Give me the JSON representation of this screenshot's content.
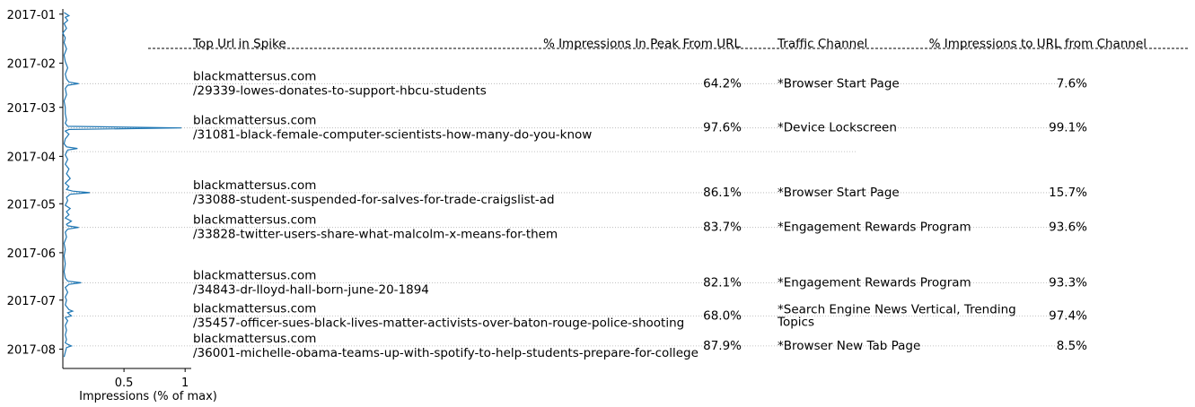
{
  "chart_data": {
    "type": "line",
    "orientation": "vertical-time",
    "xlabel": "Impressions (% of max)",
    "x_ticks": [
      {
        "value": 0.5,
        "label": "0.5"
      },
      {
        "value": 1,
        "label": "1"
      }
    ],
    "xlim": [
      0,
      1.05
    ],
    "y_ticks": [
      "2017-01",
      "2017-02",
      "2017-03",
      "2017-04",
      "2017-05",
      "2017-06",
      "2017-07",
      "2017-08"
    ],
    "ylim": [
      "2016-12-31",
      "2017-08-07"
    ],
    "line_color": "#1f77b4",
    "series": [
      {
        "points": [
          [
            "2016-12-31",
            0.01
          ],
          [
            "2017-01-01",
            0.03
          ],
          [
            "2017-01-02",
            0.05
          ],
          [
            "2017-01-03",
            0.02
          ],
          [
            "2017-01-05",
            0.04
          ],
          [
            "2017-01-07",
            0.01
          ],
          [
            "2017-01-10",
            0.03
          ],
          [
            "2017-01-13",
            0.0
          ],
          [
            "2017-01-16",
            0.02
          ],
          [
            "2017-01-19",
            0.01
          ],
          [
            "2017-01-23",
            0.03
          ],
          [
            "2017-01-27",
            0.01
          ],
          [
            "2017-01-31",
            0.02
          ],
          [
            "2017-02-04",
            0.04
          ],
          [
            "2017-02-08",
            0.02
          ],
          [
            "2017-02-11",
            0.03
          ],
          [
            "2017-02-13",
            0.05
          ],
          [
            "2017-02-14",
            0.13
          ],
          [
            "2017-02-15",
            0.04
          ],
          [
            "2017-02-17",
            0.02
          ],
          [
            "2017-02-21",
            0.03
          ],
          [
            "2017-02-25",
            0.01
          ],
          [
            "2017-03-01",
            0.02
          ],
          [
            "2017-03-05",
            0.02
          ],
          [
            "2017-03-09",
            0.03
          ],
          [
            "2017-03-11",
            0.02
          ],
          [
            "2017-03-13",
            0.04
          ],
          [
            "2017-03-14",
            0.97
          ],
          [
            "2017-03-15",
            0.05
          ],
          [
            "2017-03-16",
            0.02
          ],
          [
            "2017-03-18",
            0.05
          ],
          [
            "2017-03-21",
            0.02
          ],
          [
            "2017-03-24",
            0.01
          ],
          [
            "2017-03-26",
            0.03
          ],
          [
            "2017-03-27",
            0.12
          ],
          [
            "2017-03-28",
            0.04
          ],
          [
            "2017-03-31",
            0.02
          ],
          [
            "2017-04-03",
            0.04
          ],
          [
            "2017-04-06",
            0.02
          ],
          [
            "2017-04-09",
            0.05
          ],
          [
            "2017-04-12",
            0.03
          ],
          [
            "2017-04-15",
            0.06
          ],
          [
            "2017-04-18",
            0.02
          ],
          [
            "2017-04-20",
            0.05
          ],
          [
            "2017-04-22",
            0.03
          ],
          [
            "2017-04-23",
            0.08
          ],
          [
            "2017-04-24",
            0.22
          ],
          [
            "2017-04-25",
            0.06
          ],
          [
            "2017-04-27",
            0.03
          ],
          [
            "2017-04-29",
            0.04
          ],
          [
            "2017-05-02",
            0.02
          ],
          [
            "2017-05-04",
            0.06
          ],
          [
            "2017-05-06",
            0.03
          ],
          [
            "2017-05-08",
            0.05
          ],
          [
            "2017-05-10",
            0.02
          ],
          [
            "2017-05-12",
            0.07
          ],
          [
            "2017-05-14",
            0.03
          ],
          [
            "2017-05-15",
            0.04
          ],
          [
            "2017-05-16",
            0.13
          ],
          [
            "2017-05-17",
            0.04
          ],
          [
            "2017-05-19",
            0.02
          ],
          [
            "2017-05-22",
            0.03
          ],
          [
            "2017-05-26",
            0.01
          ],
          [
            "2017-05-30",
            0.02
          ],
          [
            "2017-06-03",
            0.01
          ],
          [
            "2017-06-08",
            0.02
          ],
          [
            "2017-06-13",
            0.01
          ],
          [
            "2017-06-17",
            0.02
          ],
          [
            "2017-06-19",
            0.04
          ],
          [
            "2017-06-20",
            0.15
          ],
          [
            "2017-06-21",
            0.05
          ],
          [
            "2017-06-23",
            0.02
          ],
          [
            "2017-06-26",
            0.04
          ],
          [
            "2017-06-29",
            0.02
          ],
          [
            "2017-07-01",
            0.03
          ],
          [
            "2017-07-04",
            0.02
          ],
          [
            "2017-07-07",
            0.05
          ],
          [
            "2017-07-08",
            0.08
          ],
          [
            "2017-07-09",
            0.04
          ],
          [
            "2017-07-11",
            0.07
          ],
          [
            "2017-07-12",
            0.02
          ],
          [
            "2017-07-14",
            0.04
          ],
          [
            "2017-07-17",
            0.02
          ],
          [
            "2017-07-20",
            0.03
          ],
          [
            "2017-07-23",
            0.02
          ],
          [
            "2017-07-26",
            0.03
          ],
          [
            "2017-07-28",
            0.02
          ],
          [
            "2017-07-29",
            0.04
          ],
          [
            "2017-07-30",
            0.07
          ],
          [
            "2017-07-31",
            0.03
          ],
          [
            "2017-08-03",
            0.02
          ],
          [
            "2017-08-06",
            0.01
          ]
        ]
      }
    ]
  },
  "table": {
    "headers": {
      "url": "Top Url in Spike",
      "pct_peak": "% Impressions In Peak From URL",
      "channel": "Traffic Channel",
      "pct_channel": "% Impressions to URL from Channel"
    },
    "rows": [
      {
        "date": "2017-02-14",
        "domain": "blackmattersus.com",
        "path": "/29339-lowes-donates-to-support-hbcu-students",
        "pct_peak": "64.2%",
        "channel": [
          "*Browser Start Page"
        ],
        "pct_channel": "7.6%"
      },
      {
        "date": "2017-03-14",
        "domain": "blackmattersus.com",
        "path": "/31081-black-female-computer-scientists-how-many-do-you-know",
        "pct_peak": "97.6%",
        "channel": [
          "*Device Lockscreen"
        ],
        "pct_channel": "99.1%"
      },
      {
        "date": "2017-03-29",
        "domain": "",
        "path": "",
        "pct_peak": "",
        "channel": [],
        "pct_channel": ""
      },
      {
        "date": "2017-04-24",
        "domain": "blackmattersus.com",
        "path": "/33088-student-suspended-for-salves-for-trade-craigslist-ad",
        "pct_peak": "86.1%",
        "channel": [
          "*Browser Start Page"
        ],
        "pct_channel": "15.7%"
      },
      {
        "date": "2017-05-16",
        "domain": "blackmattersus.com",
        "path": "/33828-twitter-users-share-what-malcolm-x-means-for-them",
        "pct_peak": "83.7%",
        "channel": [
          "*Engagement Rewards Program"
        ],
        "pct_channel": "93.6%"
      },
      {
        "date": "2017-06-20",
        "domain": "blackmattersus.com",
        "path": "/34843-dr-lloyd-hall-born-june-20-1894",
        "pct_peak": "82.1%",
        "channel": [
          "*Engagement Rewards Program"
        ],
        "pct_channel": "93.3%"
      },
      {
        "date": "2017-07-11",
        "domain": "blackmattersus.com",
        "path": "/35457-officer-sues-black-lives-matter-activists-over-baton-rouge-police-shooting",
        "pct_peak": "68.0%",
        "channel": [
          "*Search Engine News Vertical, Trending",
          "Topics"
        ],
        "pct_channel": "97.4%"
      },
      {
        "date": "2017-07-30",
        "domain": "blackmattersus.com",
        "path": "/36001-michelle-obama-teams-up-with-spotify-to-help-students-prepare-for-college",
        "pct_peak": "87.9%",
        "channel": [
          "*Browser New Tab Page"
        ],
        "pct_channel": "8.5%"
      }
    ]
  }
}
